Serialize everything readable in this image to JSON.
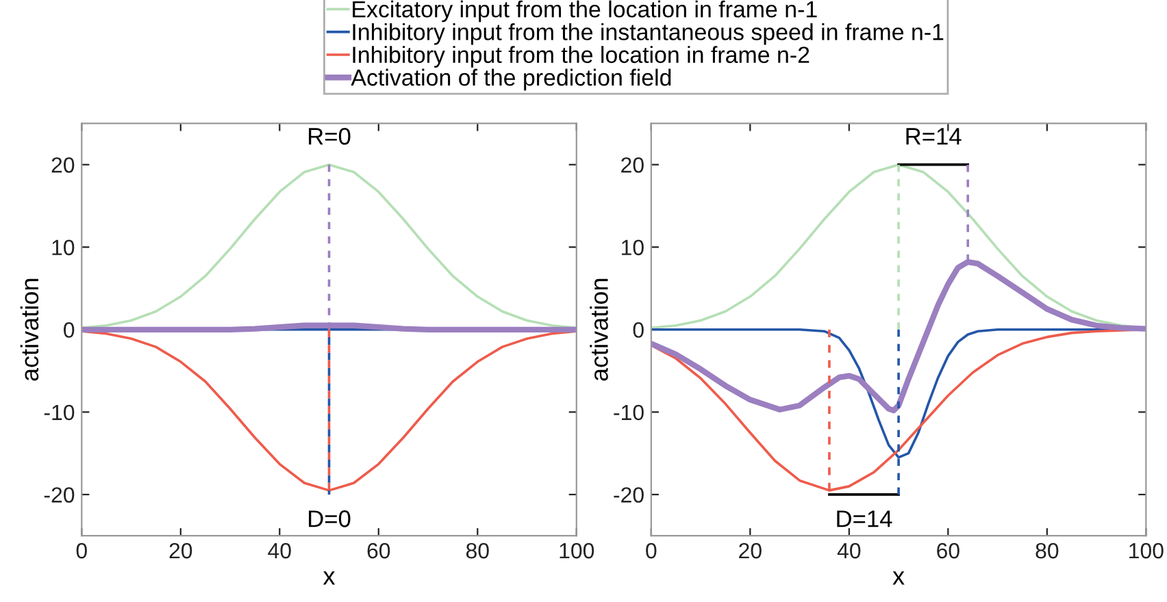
{
  "chart_data": [
    {
      "type": "line",
      "xlabel": "x",
      "ylabel": "activation",
      "xlim": [
        0,
        100
      ],
      "ylim": [
        -25,
        25
      ],
      "xticks": [
        0,
        20,
        40,
        60,
        80,
        100
      ],
      "yticks": [
        -20,
        -10,
        0,
        10,
        20
      ],
      "grid": false,
      "legend": "top",
      "line_style": "solid",
      "marker": "none",
      "x": [
        0,
        5,
        10,
        15,
        20,
        25,
        30,
        35,
        40,
        45,
        50,
        55,
        60,
        65,
        70,
        75,
        80,
        85,
        90,
        95,
        100
      ],
      "series": [
        {
          "name": "Excitatory input from the location in frame n-1",
          "color": "#b5dfb5",
          "values": [
            0.2,
            0.5,
            1.1,
            2.2,
            4,
            6.5,
            9.8,
            13.4,
            16.7,
            19.1,
            20,
            19.1,
            16.7,
            13.4,
            9.8,
            6.5,
            4,
            2.2,
            1.1,
            0.5,
            0.2
          ]
        },
        {
          "name": "Inhibitory input from the instantaneous speed in frame n-1",
          "color": "#2456a8",
          "values": [
            null,
            null,
            null,
            null,
            null,
            null,
            0,
            0,
            0,
            0,
            0,
            0,
            0,
            0,
            0,
            null,
            null,
            null,
            null,
            null,
            null
          ]
        },
        {
          "name": "Inhibitory input from the location in frame n-2",
          "color": "#ee5b4b",
          "values": [
            -0.2,
            -0.5,
            -1.1,
            -2.1,
            -3.9,
            -6.3,
            -9.6,
            -13.1,
            -16.3,
            -18.6,
            -19.5,
            -18.6,
            -16.3,
            -13.1,
            -9.6,
            -6.3,
            -3.9,
            -2.1,
            -1.1,
            -0.5,
            -0.2
          ]
        },
        {
          "name": "Activation of the prediction field",
          "color": "#9b7fc0",
          "values": [
            0,
            0,
            0,
            0,
            0,
            0,
            0,
            0.1,
            0.3,
            0.5,
            0.5,
            0.5,
            0.3,
            0.1,
            0,
            0,
            0,
            0,
            0,
            0,
            0
          ]
        },
        {
          "color": "#9b7fc0",
          "x": [
            50,
            50
          ],
          "values": [
            20,
            0
          ],
          "line_style": "dashed"
        },
        {
          "color": "#ee5b4b",
          "x": [
            50,
            50
          ],
          "values": [
            0,
            -19.5
          ],
          "line_style": "dashed"
        },
        {
          "color": "#2456a8",
          "x": [
            50,
            50
          ],
          "values": [
            0,
            -20
          ],
          "line_style": "dashed"
        }
      ],
      "annotations": [
        {
          "text": "R=0",
          "x": 50,
          "y": 20
        },
        {
          "text": "D=0",
          "x": 50,
          "y": -20
        }
      ]
    },
    {
      "type": "line",
      "xlabel": "x",
      "ylabel": "activation",
      "xlim": [
        0,
        100
      ],
      "ylim": [
        -25,
        25
      ],
      "xticks": [
        0,
        20,
        40,
        60,
        80,
        100
      ],
      "yticks": [
        -20,
        -10,
        0,
        10,
        20
      ],
      "grid": false,
      "line_style": "solid",
      "marker": "none",
      "x": [
        0,
        5,
        10,
        15,
        20,
        25,
        30,
        35,
        40,
        45,
        50,
        55,
        60,
        65,
        70,
        75,
        80,
        85,
        90,
        95,
        100
      ],
      "series": [
        {
          "color": "#b5dfb5",
          "values": [
            0.2,
            0.5,
            1.1,
            2.2,
            4,
            6.5,
            9.8,
            13.4,
            16.7,
            19.1,
            20,
            19.1,
            16.7,
            13.4,
            9.8,
            6.5,
            4,
            2.2,
            1.1,
            0.5,
            0.2
          ]
        },
        {
          "color": "#2456a8",
          "x": [
            0,
            10,
            20,
            30,
            35,
            38,
            40,
            42,
            44,
            46,
            48,
            50,
            52,
            54,
            56,
            58,
            60,
            62,
            64,
            66,
            70,
            80,
            90,
            100
          ],
          "values": [
            0,
            0,
            0,
            0,
            -0.2,
            -1,
            -2.5,
            -4.7,
            -7.7,
            -11,
            -14,
            -15.5,
            -15,
            -12.5,
            -9,
            -5.8,
            -3.2,
            -1.5,
            -0.6,
            -0.2,
            0,
            0,
            0,
            0
          ]
        },
        {
          "color": "#ee5b4b",
          "x": [
            0,
            5,
            10,
            15,
            20,
            25,
            30,
            36,
            40,
            45,
            50,
            55,
            60,
            65,
            70,
            75,
            80,
            85,
            90,
            95,
            100
          ],
          "values": [
            -1.9,
            -3.5,
            -5.9,
            -9,
            -12.5,
            -15.9,
            -18.3,
            -19.5,
            -19,
            -17.3,
            -14.6,
            -11.3,
            -8,
            -5.2,
            -3.1,
            -1.7,
            -0.9,
            -0.4,
            -0.2,
            -0.1,
            0
          ]
        },
        {
          "color": "#9b7fc0",
          "x": [
            0,
            5,
            10,
            15,
            20,
            26,
            30,
            35,
            38,
            40,
            42,
            45,
            48,
            49,
            50,
            52,
            55,
            58,
            60,
            62,
            64,
            66,
            70,
            75,
            80,
            85,
            90,
            95,
            100
          ],
          "values": [
            -1.7,
            -3,
            -4.8,
            -6.8,
            -8.5,
            -9.7,
            -9.2,
            -7,
            -5.8,
            -5.6,
            -6,
            -7.8,
            -9.6,
            -9.8,
            -9.2,
            -6,
            -1.5,
            3,
            5.5,
            7.5,
            8.2,
            8,
            6.5,
            4.5,
            2.5,
            1.2,
            0.5,
            0.2,
            0.1
          ]
        },
        {
          "color": "#b5dfb5",
          "x": [
            50,
            50
          ],
          "values": [
            20,
            0
          ],
          "line_style": "dashed"
        },
        {
          "color": "#9b7fc0",
          "x": [
            64,
            64
          ],
          "values": [
            20,
            8.2
          ],
          "line_style": "dashed"
        },
        {
          "color": "#ee5b4b",
          "x": [
            36,
            36
          ],
          "values": [
            0,
            -19.5
          ],
          "line_style": "dashed"
        },
        {
          "color": "#2456a8",
          "x": [
            50,
            50
          ],
          "values": [
            0,
            -20
          ],
          "line_style": "dashed"
        },
        {
          "color": "#000000",
          "x": [
            50,
            64
          ],
          "values": [
            20,
            20
          ]
        },
        {
          "color": "#000000",
          "x": [
            36,
            50
          ],
          "values": [
            -20,
            -20
          ]
        }
      ],
      "annotations": [
        {
          "text": "R=14",
          "x": 57,
          "y": 20
        },
        {
          "text": "D=14",
          "x": 43,
          "y": -20
        }
      ]
    }
  ]
}
